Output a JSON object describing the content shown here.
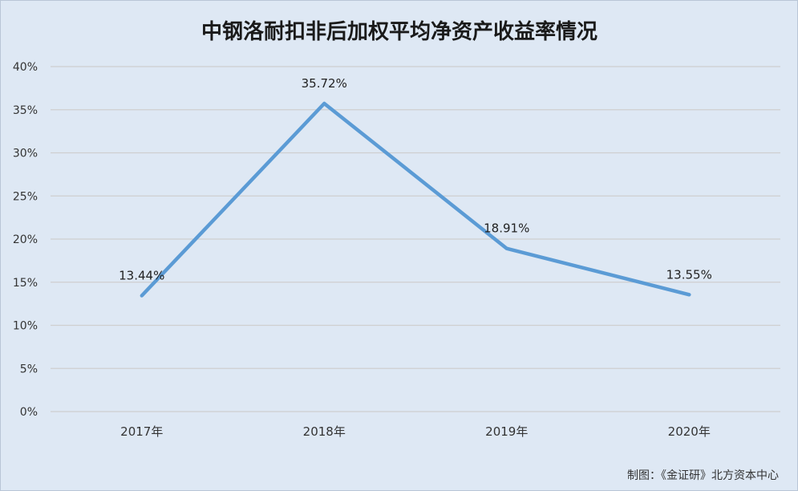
{
  "chart_data": {
    "type": "line",
    "title": "中钢洛耐扣非后加权平均净资产收益率情况",
    "categories": [
      "2017年",
      "2018年",
      "2019年",
      "2020年"
    ],
    "series": [
      {
        "values": [
          13.44,
          35.72,
          18.91,
          13.55
        ]
      }
    ],
    "data_labels": [
      "13.44%",
      "35.72%",
      "18.91%",
      "13.55%"
    ],
    "y_ticks": [
      "0%",
      "5%",
      "10%",
      "15%",
      "20%",
      "25%",
      "30%",
      "35%",
      "40%"
    ],
    "ylim": [
      0,
      40
    ],
    "xlabel": "",
    "ylabel": "",
    "grid": true,
    "legend": "none",
    "colors": {
      "line": "#5b9bd5",
      "grid": "#cfcfcf",
      "background": "#dee8f4"
    }
  },
  "credit": "制图：《金证研》北方资本中心"
}
